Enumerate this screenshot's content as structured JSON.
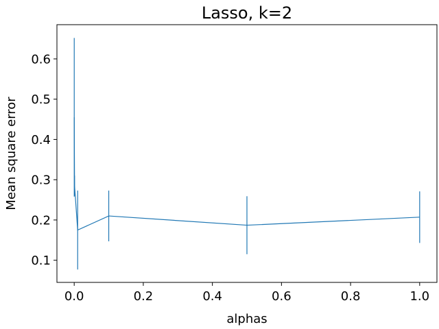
{
  "chart_data": {
    "type": "line",
    "title": "Lasso, k=2",
    "xlabel": "alphas",
    "ylabel": "Mean square error",
    "xlim": [
      -0.05,
      1.05
    ],
    "ylim": [
      0.045,
      0.685
    ],
    "xticks": [
      "0.0",
      "0.2",
      "0.4",
      "0.6",
      "0.8",
      "1.0"
    ],
    "yticks": [
      "0.1",
      "0.2",
      "0.3",
      "0.4",
      "0.5",
      "0.6"
    ],
    "grid": false,
    "legend": "none",
    "series": [
      {
        "color": "#1f77b4",
        "x": [
          0.0001,
          0.001,
          0.01,
          0.1,
          0.5,
          1.0
        ],
        "y": [
          0.455,
          0.285,
          0.175,
          0.21,
          0.187,
          0.207
        ],
        "yerr": [
          0.197,
          0.025,
          0.098,
          0.063,
          0.072,
          0.064
        ]
      }
    ]
  }
}
